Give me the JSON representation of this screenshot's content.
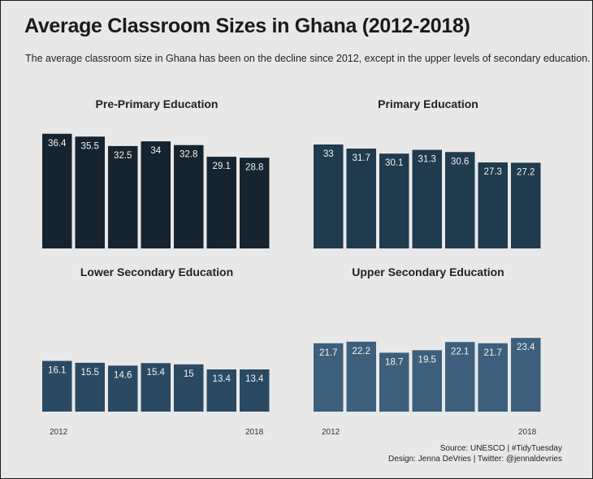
{
  "title": "Average Classroom Sizes in Ghana (2012-2018)",
  "subtitle": "The average classroom size in Ghana has been on the decline since 2012, except in the upper levels of secondary education.",
  "caption": {
    "source": "Source: UNESCO | #TidyTuesday",
    "design": "Design: Jenna DeVries | Twitter: @jennaldevries"
  },
  "axis": {
    "x_start": "2012",
    "x_end": "2018"
  },
  "chart_data": [
    {
      "type": "bar",
      "title": "Pre-Primary Education",
      "categories": [
        "2012",
        "2013",
        "2014",
        "2015",
        "2016",
        "2017",
        "2018"
      ],
      "values": [
        36.4,
        35.5,
        32.5,
        34,
        32.8,
        29.1,
        28.8
      ],
      "labels": [
        "36.4",
        "35.5",
        "32.5",
        "34",
        "32.8",
        "29.1",
        "28.8"
      ],
      "color": "#15242f",
      "ylim": [
        0,
        40
      ]
    },
    {
      "type": "bar",
      "title": "Primary Education",
      "categories": [
        "2012",
        "2013",
        "2014",
        "2015",
        "2016",
        "2017",
        "2018"
      ],
      "values": [
        33,
        31.7,
        30.1,
        31.3,
        30.6,
        27.3,
        27.2
      ],
      "labels": [
        "33",
        "31.7",
        "30.1",
        "31.3",
        "30.6",
        "27.3",
        "27.2"
      ],
      "color": "#203a4e",
      "ylim": [
        0,
        40
      ]
    },
    {
      "type": "bar",
      "title": "Lower Secondary Education",
      "categories": [
        "2012",
        "2013",
        "2014",
        "2015",
        "2016",
        "2017",
        "2018"
      ],
      "values": [
        16.1,
        15.5,
        14.6,
        15.4,
        15,
        13.4,
        13.4
      ],
      "labels": [
        "16.1",
        "15.5",
        "14.6",
        "15.4",
        "15",
        "13.4",
        "13.4"
      ],
      "color": "#2a4a64",
      "ylim": [
        0,
        40
      ]
    },
    {
      "type": "bar",
      "title": "Upper Secondary Education",
      "categories": [
        "2012",
        "2013",
        "2014",
        "2015",
        "2016",
        "2017",
        "2018"
      ],
      "values": [
        21.7,
        22.2,
        18.7,
        19.5,
        22.1,
        21.7,
        23.4
      ],
      "labels": [
        "21.7",
        "22.2",
        "18.7",
        "19.5",
        "22.1",
        "21.7",
        "23.4"
      ],
      "color": "#3d5f7b",
      "ylim": [
        0,
        40
      ]
    }
  ]
}
